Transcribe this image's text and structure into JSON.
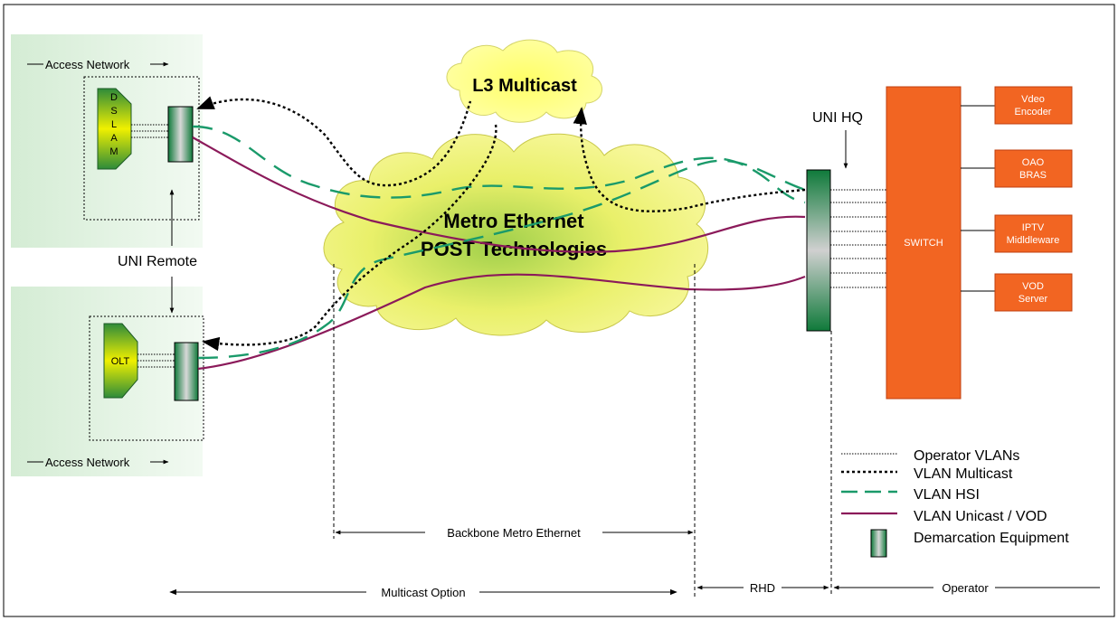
{
  "cloud_multicast": {
    "label": "L3 Multicast"
  },
  "cloud_metro": {
    "line1": "Metro Ethernet",
    "line2": "POST Technologies"
  },
  "access_top": {
    "label": "Access Network",
    "device": [
      "D",
      "S",
      "L",
      "A",
      "M"
    ]
  },
  "access_bottom": {
    "label": "Access Network",
    "device": "OLT"
  },
  "uni_remote": {
    "label": "UNI Remote"
  },
  "uni_hq": {
    "label": "UNI HQ"
  },
  "switch": {
    "label": "SWITCH"
  },
  "servers": [
    {
      "line1": "Vdeo",
      "line2": "Encoder"
    },
    {
      "line1": "OAO",
      "line2": "BRAS"
    },
    {
      "line1": "IPTV",
      "line2": "Midldleware"
    },
    {
      "line1": "VOD",
      "line2": "Server"
    }
  ],
  "legend": {
    "operator_vlans": "Operator VLANs",
    "vlan_multicast": "VLAN Multicast",
    "vlan_hsi": "VLAN HSI",
    "vlan_unicast": "VLAN Unicast / VOD",
    "demarcation": "Demarcation Equipment"
  },
  "dimensions": {
    "backbone": "Backbone Metro Ethernet",
    "multicast_option": "Multicast Option",
    "rhd": "RHD",
    "operator": "Operator"
  },
  "colors": {
    "hsi": "#1a9a6a",
    "unicast": "#8b1a5a",
    "switch": "#f26522",
    "cloud": "#f2f27a"
  }
}
